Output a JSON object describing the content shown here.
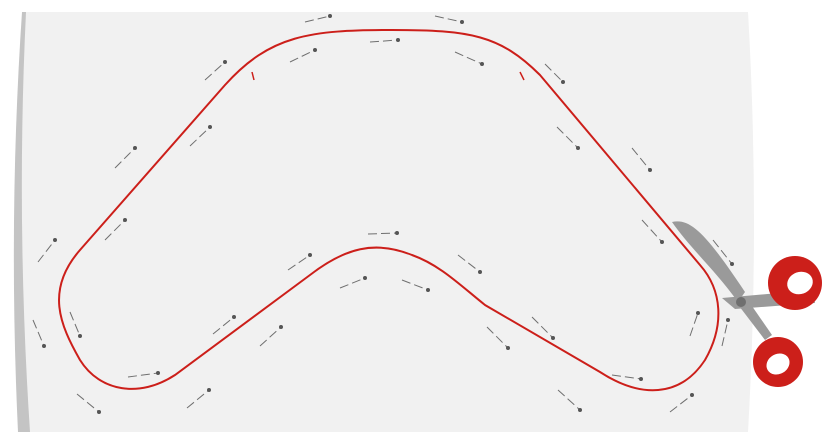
{
  "scene": {
    "description_colors": {
      "fabric": "#f1f1f1",
      "fabric_edge": "#c4c4c4",
      "cut_line": "#cc1f1a",
      "pin_shaft": "#6f6f6f",
      "pin_head": "#555555",
      "scissor_blade": "#9a9a9a",
      "scissor_handle": "#cc1f1a"
    },
    "icons": {
      "fabric": "fabric-sheet-icon",
      "pattern": "boomerang-pattern-outline-icon",
      "pins": "sewing-pin-icon",
      "tool": "scissors-icon"
    }
  }
}
